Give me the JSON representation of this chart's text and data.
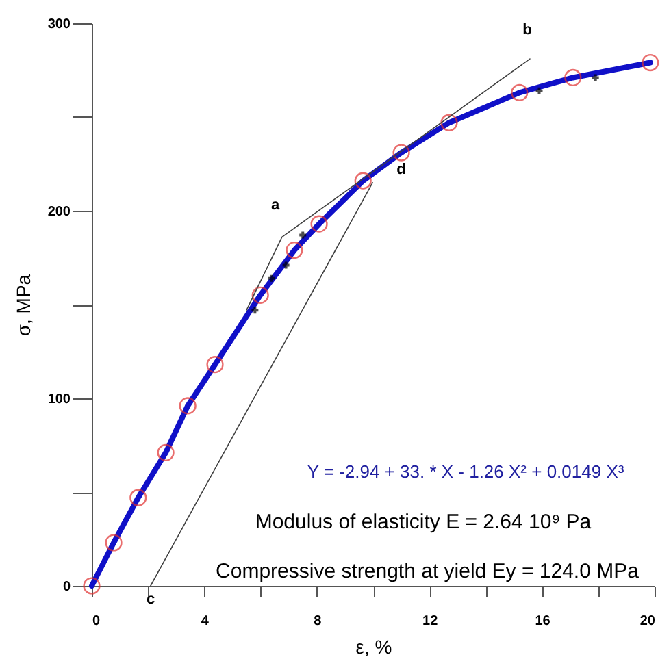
{
  "chart_data": {
    "type": "scatter",
    "xlabel": "ε,  %",
    "ylabel": "σ, MPa",
    "xlim": [
      0,
      20
    ],
    "ylim": [
      0,
      300
    ],
    "xticks": [
      0,
      {
        "value": 2,
        "label": null
      },
      4,
      {
        "value": 6,
        "label": null
      },
      8,
      {
        "value": 10,
        "label": null
      },
      12,
      {
        "value": 14,
        "label": null
      },
      16,
      {
        "value": 18,
        "label": null
      },
      20
    ],
    "yticks": [
      0,
      {
        "value": 50,
        "label": null
      },
      100,
      {
        "value": 150,
        "label": null
      },
      200,
      {
        "value": 250,
        "label": null
      },
      300
    ],
    "grid": false,
    "series": [
      {
        "type": "line",
        "color": "#1010c8",
        "line_style": "solid",
        "marker": "none",
        "x": [
          0,
          0.78,
          1.65,
          2.63,
          3.41,
          4.38,
          5.99,
          7.2,
          8.08,
          9.64,
          11.0,
          12.7,
          15.2,
          17.1,
          19.85
        ],
        "values": [
          0,
          23,
          47,
          71,
          96,
          118,
          155,
          179,
          193,
          216,
          231,
          247,
          263,
          271,
          279
        ]
      },
      {
        "type": "scatter",
        "color": "#e03030",
        "marker": "circle",
        "x": [
          0,
          0.78,
          1.65,
          2.63,
          3.41,
          4.38,
          5.99,
          7.2,
          8.08,
          9.64,
          11.0,
          12.7,
          15.2,
          17.1,
          19.85
        ],
        "values": [
          0,
          23,
          47,
          71,
          96,
          118,
          155,
          179,
          193,
          216,
          231,
          247,
          263,
          271,
          279
        ]
      },
      {
        "type": "scatter",
        "color": "#000000",
        "marker": "cross",
        "x": [
          5.8,
          6.4,
          6.9,
          7.5,
          15.9,
          17.9
        ],
        "values": [
          147,
          164,
          171,
          187,
          264,
          271
        ]
      },
      {
        "type": "line",
        "color": "#404040",
        "line_style": "solid",
        "marker": "none",
        "x": [
          5.5,
          6.76,
          15.57
        ],
        "values": [
          147,
          186,
          281
        ]
      },
      {
        "type": "line",
        "color": "#404040",
        "line_style": "solid",
        "marker": "none",
        "x": [
          2.09,
          9.98
        ],
        "values": [
          0,
          215
        ]
      }
    ],
    "annotations": [
      "a",
      "b",
      "c",
      "d",
      "Y = -2.94 + 33. * X - 1.26  X² + 0.0149 X³",
      "Modulus of elasticity  E = 2.64 10⁹  Pa",
      "Compressive strength at yield Ey = 124.0 MPa"
    ]
  }
}
